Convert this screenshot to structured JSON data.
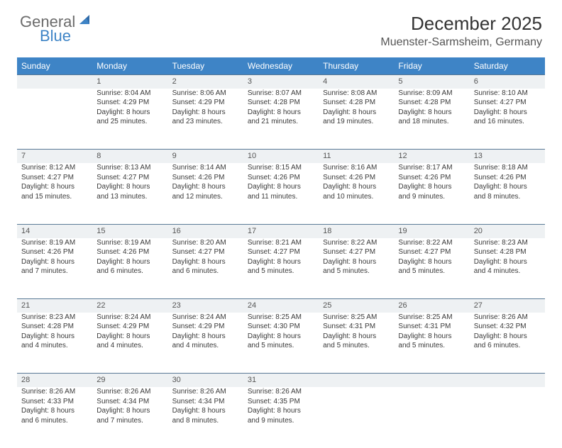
{
  "logo": {
    "general": "General",
    "blue": "Blue"
  },
  "header": {
    "month": "December 2025",
    "location": "Muenster-Sarmsheim, Germany"
  },
  "colors": {
    "header_bg": "#3e84c6",
    "header_text": "#ffffff",
    "daynum_bg": "#eef1f3",
    "daynum_border": "#5a7a96",
    "text": "#3a3a3a",
    "logo_blue": "#3e84c6",
    "logo_gray": "#6b6b6b",
    "background": "#ffffff"
  },
  "weekdays": [
    "Sunday",
    "Monday",
    "Tuesday",
    "Wednesday",
    "Thursday",
    "Friday",
    "Saturday"
  ],
  "weeks": [
    {
      "nums": [
        "",
        "1",
        "2",
        "3",
        "4",
        "5",
        "6"
      ],
      "cells": [
        [],
        [
          "Sunrise: 8:04 AM",
          "Sunset: 4:29 PM",
          "Daylight: 8 hours",
          "and 25 minutes."
        ],
        [
          "Sunrise: 8:06 AM",
          "Sunset: 4:29 PM",
          "Daylight: 8 hours",
          "and 23 minutes."
        ],
        [
          "Sunrise: 8:07 AM",
          "Sunset: 4:28 PM",
          "Daylight: 8 hours",
          "and 21 minutes."
        ],
        [
          "Sunrise: 8:08 AM",
          "Sunset: 4:28 PM",
          "Daylight: 8 hours",
          "and 19 minutes."
        ],
        [
          "Sunrise: 8:09 AM",
          "Sunset: 4:28 PM",
          "Daylight: 8 hours",
          "and 18 minutes."
        ],
        [
          "Sunrise: 8:10 AM",
          "Sunset: 4:27 PM",
          "Daylight: 8 hours",
          "and 16 minutes."
        ]
      ]
    },
    {
      "nums": [
        "7",
        "8",
        "9",
        "10",
        "11",
        "12",
        "13"
      ],
      "cells": [
        [
          "Sunrise: 8:12 AM",
          "Sunset: 4:27 PM",
          "Daylight: 8 hours",
          "and 15 minutes."
        ],
        [
          "Sunrise: 8:13 AM",
          "Sunset: 4:27 PM",
          "Daylight: 8 hours",
          "and 13 minutes."
        ],
        [
          "Sunrise: 8:14 AM",
          "Sunset: 4:26 PM",
          "Daylight: 8 hours",
          "and 12 minutes."
        ],
        [
          "Sunrise: 8:15 AM",
          "Sunset: 4:26 PM",
          "Daylight: 8 hours",
          "and 11 minutes."
        ],
        [
          "Sunrise: 8:16 AM",
          "Sunset: 4:26 PM",
          "Daylight: 8 hours",
          "and 10 minutes."
        ],
        [
          "Sunrise: 8:17 AM",
          "Sunset: 4:26 PM",
          "Daylight: 8 hours",
          "and 9 minutes."
        ],
        [
          "Sunrise: 8:18 AM",
          "Sunset: 4:26 PM",
          "Daylight: 8 hours",
          "and 8 minutes."
        ]
      ]
    },
    {
      "nums": [
        "14",
        "15",
        "16",
        "17",
        "18",
        "19",
        "20"
      ],
      "cells": [
        [
          "Sunrise: 8:19 AM",
          "Sunset: 4:26 PM",
          "Daylight: 8 hours",
          "and 7 minutes."
        ],
        [
          "Sunrise: 8:19 AM",
          "Sunset: 4:26 PM",
          "Daylight: 8 hours",
          "and 6 minutes."
        ],
        [
          "Sunrise: 8:20 AM",
          "Sunset: 4:27 PM",
          "Daylight: 8 hours",
          "and 6 minutes."
        ],
        [
          "Sunrise: 8:21 AM",
          "Sunset: 4:27 PM",
          "Daylight: 8 hours",
          "and 5 minutes."
        ],
        [
          "Sunrise: 8:22 AM",
          "Sunset: 4:27 PM",
          "Daylight: 8 hours",
          "and 5 minutes."
        ],
        [
          "Sunrise: 8:22 AM",
          "Sunset: 4:27 PM",
          "Daylight: 8 hours",
          "and 5 minutes."
        ],
        [
          "Sunrise: 8:23 AM",
          "Sunset: 4:28 PM",
          "Daylight: 8 hours",
          "and 4 minutes."
        ]
      ]
    },
    {
      "nums": [
        "21",
        "22",
        "23",
        "24",
        "25",
        "26",
        "27"
      ],
      "cells": [
        [
          "Sunrise: 8:23 AM",
          "Sunset: 4:28 PM",
          "Daylight: 8 hours",
          "and 4 minutes."
        ],
        [
          "Sunrise: 8:24 AM",
          "Sunset: 4:29 PM",
          "Daylight: 8 hours",
          "and 4 minutes."
        ],
        [
          "Sunrise: 8:24 AM",
          "Sunset: 4:29 PM",
          "Daylight: 8 hours",
          "and 4 minutes."
        ],
        [
          "Sunrise: 8:25 AM",
          "Sunset: 4:30 PM",
          "Daylight: 8 hours",
          "and 5 minutes."
        ],
        [
          "Sunrise: 8:25 AM",
          "Sunset: 4:31 PM",
          "Daylight: 8 hours",
          "and 5 minutes."
        ],
        [
          "Sunrise: 8:25 AM",
          "Sunset: 4:31 PM",
          "Daylight: 8 hours",
          "and 5 minutes."
        ],
        [
          "Sunrise: 8:26 AM",
          "Sunset: 4:32 PM",
          "Daylight: 8 hours",
          "and 6 minutes."
        ]
      ]
    },
    {
      "nums": [
        "28",
        "29",
        "30",
        "31",
        "",
        "",
        ""
      ],
      "cells": [
        [
          "Sunrise: 8:26 AM",
          "Sunset: 4:33 PM",
          "Daylight: 8 hours",
          "and 6 minutes."
        ],
        [
          "Sunrise: 8:26 AM",
          "Sunset: 4:34 PM",
          "Daylight: 8 hours",
          "and 7 minutes."
        ],
        [
          "Sunrise: 8:26 AM",
          "Sunset: 4:34 PM",
          "Daylight: 8 hours",
          "and 8 minutes."
        ],
        [
          "Sunrise: 8:26 AM",
          "Sunset: 4:35 PM",
          "Daylight: 8 hours",
          "and 9 minutes."
        ],
        [],
        [],
        []
      ]
    }
  ]
}
